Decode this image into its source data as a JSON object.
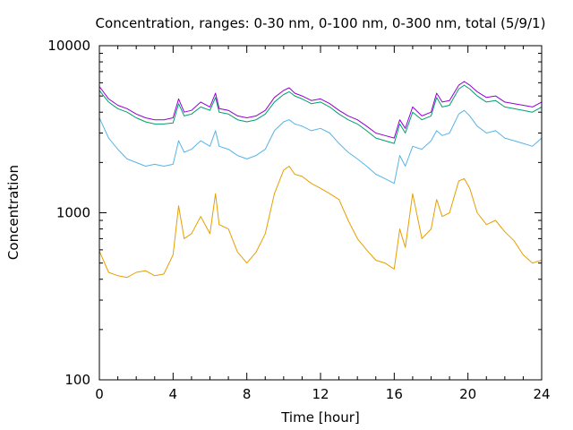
{
  "chart_data": {
    "type": "line",
    "title": "Concentration, ranges: 0-30 nm, 0-100 nm, 0-300 nm, total (5/9/1)",
    "xlabel": "Time [hour]",
    "ylabel": "Concentration",
    "xlim": [
      0,
      24
    ],
    "ylim": [
      100,
      10000
    ],
    "yscale": "log",
    "grid": false,
    "xticks": [
      0,
      4,
      8,
      12,
      16,
      20,
      24
    ],
    "xtick_labels": [
      "0",
      "4",
      "8",
      "12",
      "16",
      "20",
      "24"
    ],
    "yticks": [
      100,
      1000,
      10000
    ],
    "ytick_labels": [
      "100",
      "1000",
      "10000"
    ],
    "x": [
      0,
      0.5,
      1,
      1.5,
      2,
      2.5,
      3,
      3.5,
      4,
      4.3,
      4.6,
      5,
      5.5,
      6,
      6.3,
      6.5,
      7,
      7.5,
      8,
      8.5,
      9,
      9.5,
      10,
      10.3,
      10.6,
      11,
      11.5,
      12,
      12.5,
      13,
      13.5,
      14,
      14.5,
      15,
      15.5,
      16,
      16.3,
      16.6,
      17,
      17.5,
      18,
      18.3,
      18.6,
      19,
      19.5,
      19.8,
      20.1,
      20.5,
      21,
      21.5,
      22,
      22.5,
      23,
      23.5,
      24
    ],
    "series": [
      {
        "color": "#e69f00",
        "values": [
          590,
          440,
          420,
          410,
          440,
          450,
          420,
          430,
          560,
          1100,
          700,
          750,
          950,
          750,
          1300,
          850,
          800,
          580,
          500,
          580,
          750,
          1300,
          1800,
          1900,
          1700,
          1650,
          1500,
          1400,
          1300,
          1200,
          900,
          700,
          600,
          520,
          500,
          460,
          800,
          620,
          1300,
          700,
          800,
          1200,
          950,
          1000,
          1550,
          1600,
          1400,
          1000,
          850,
          900,
          770,
          680,
          560,
          500,
          520
        ]
      },
      {
        "color": "#56b4e9",
        "values": [
          3700,
          2800,
          2400,
          2100,
          2000,
          1900,
          1950,
          1900,
          1950,
          2700,
          2300,
          2400,
          2700,
          2500,
          3100,
          2500,
          2400,
          2200,
          2100,
          2200,
          2400,
          3100,
          3500,
          3600,
          3400,
          3300,
          3100,
          3200,
          3000,
          2600,
          2300,
          2100,
          1900,
          1700,
          1600,
          1500,
          2200,
          1900,
          2500,
          2400,
          2700,
          3100,
          2900,
          3000,
          3900,
          4100,
          3800,
          3300,
          3000,
          3100,
          2800,
          2700,
          2600,
          2500,
          2800
        ]
      },
      {
        "color": "#009e73",
        "values": [
          5400,
          4600,
          4200,
          4000,
          3700,
          3500,
          3400,
          3400,
          3450,
          4500,
          3800,
          3900,
          4300,
          4100,
          4900,
          4000,
          3900,
          3600,
          3500,
          3600,
          3900,
          4600,
          5100,
          5300,
          5000,
          4800,
          4500,
          4600,
          4300,
          3900,
          3600,
          3400,
          3100,
          2800,
          2700,
          2600,
          3400,
          3000,
          4000,
          3600,
          3800,
          4900,
          4300,
          4400,
          5500,
          5800,
          5500,
          5000,
          4600,
          4700,
          4300,
          4200,
          4100,
          4000,
          4300
        ]
      },
      {
        "color": "#9400d3",
        "values": [
          5700,
          4800,
          4400,
          4200,
          3900,
          3700,
          3600,
          3600,
          3700,
          4800,
          4000,
          4100,
          4600,
          4300,
          5200,
          4200,
          4100,
          3800,
          3700,
          3800,
          4100,
          4900,
          5400,
          5600,
          5200,
          5000,
          4700,
          4800,
          4500,
          4100,
          3800,
          3600,
          3300,
          3000,
          2900,
          2800,
          3600,
          3200,
          4300,
          3800,
          4000,
          5200,
          4600,
          4700,
          5800,
          6100,
          5800,
          5300,
          4900,
          5000,
          4600,
          4500,
          4400,
          4300,
          4600
        ]
      }
    ]
  }
}
